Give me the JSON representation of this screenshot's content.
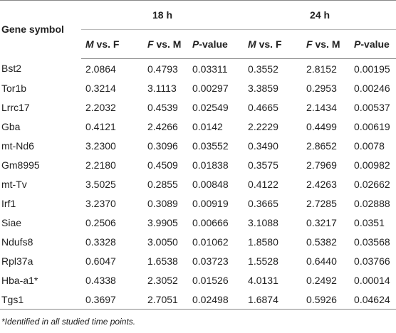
{
  "table": {
    "corner": "Gene symbol",
    "groups": [
      "18 h",
      "24 h"
    ],
    "subheaders": [
      "M vs. F",
      "F vs. M",
      "P-value",
      "M vs. F",
      "F vs. M",
      "P-value"
    ],
    "rows": [
      [
        "Bst2",
        "2.0864",
        "0.4793",
        "0.03311",
        "0.3552",
        "2.8152",
        "0.00195"
      ],
      [
        "Tor1b",
        "0.3214",
        "3.1113",
        "0.00297",
        "3.3859",
        "0.2953",
        "0.00246"
      ],
      [
        "Lrrc17",
        "2.2032",
        "0.4539",
        "0.02549",
        "0.4665",
        "2.1434",
        "0.00537"
      ],
      [
        "Gba",
        "0.4121",
        "2.4266",
        "0.0142",
        "2.2229",
        "0.4499",
        "0.00619"
      ],
      [
        "mt-Nd6",
        "3.2300",
        "0.3096",
        "0.03552",
        "0.3490",
        "2.8652",
        "0.0078"
      ],
      [
        "Gm8995",
        "2.2180",
        "0.4509",
        "0.01838",
        "0.3575",
        "2.7969",
        "0.00982"
      ],
      [
        "mt-Tv",
        "3.5025",
        "0.2855",
        "0.00848",
        "0.4122",
        "2.4263",
        "0.02662"
      ],
      [
        "Irf1",
        "3.2370",
        "0.3089",
        "0.00919",
        "0.3665",
        "2.7285",
        "0.02888"
      ],
      [
        "Siae",
        "0.2506",
        "3.9905",
        "0.00666",
        "3.1088",
        "0.3217",
        "0.0351"
      ],
      [
        "Ndufs8",
        "0.3328",
        "3.0050",
        "0.01062",
        "1.8580",
        "0.5382",
        "0.03568"
      ],
      [
        "Rpl37a",
        "0.6047",
        "1.6538",
        "0.03723",
        "1.5528",
        "0.6440",
        "0.03766"
      ],
      [
        "Hba-a1*",
        "0.4338",
        "2.3052",
        "0.01526",
        "4.0131",
        "0.2492",
        "0.00014"
      ],
      [
        "Tgs1",
        "0.3697",
        "2.7051",
        "0.02498",
        "1.6874",
        "0.5926",
        "0.04624"
      ]
    ],
    "footnote": "*Identified in all studied time points."
  }
}
